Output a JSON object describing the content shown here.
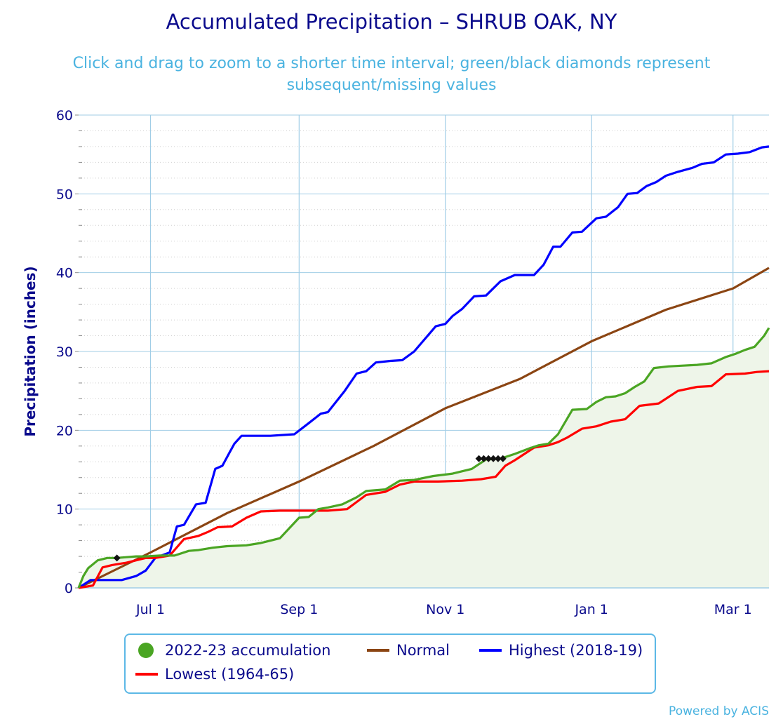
{
  "title": "Accumulated Precipitation – SHRUB OAK, NY",
  "subtitle_line1": "Click and drag to zoom to a shorter time interval; green/black diamonds represent",
  "subtitle_line2": "subsequent/missing values",
  "credit": "Powered by ACIS",
  "colors": {
    "current": "#4aa523",
    "current_fill": "#eef5e9",
    "normal": "#8b4513",
    "highest": "#0000ff",
    "lowest": "#ff0000",
    "axis_text": "#0a0a8c",
    "grid": "#a0cde6"
  },
  "legend": [
    {
      "label": "2022-23 accumulation",
      "color": "#4aa523",
      "symbol": "dot"
    },
    {
      "label": "Normal",
      "color": "#8b4513",
      "symbol": "line"
    },
    {
      "label": "Highest (2018-19)",
      "color": "#0000ff",
      "symbol": "line"
    },
    {
      "label": "Lowest (1964-65)",
      "color": "#ff0000",
      "symbol": "line"
    }
  ],
  "chart_data": {
    "type": "line",
    "title": "Accumulated Precipitation – SHRUB OAK, NY",
    "xlabel": "",
    "ylabel": "Precipitation (inches)",
    "x_unit": "day index from Jun 1 2022",
    "xlim": [
      0,
      288
    ],
    "ylim": [
      0,
      60
    ],
    "yticks": [
      0,
      10,
      20,
      30,
      40,
      50,
      60
    ],
    "xticks": [
      {
        "label": "Jul 1",
        "x": 30
      },
      {
        "label": "Sep 1",
        "x": 92
      },
      {
        "label": "Nov 1",
        "x": 153
      },
      {
        "label": "Jan 1",
        "x": 214
      },
      {
        "label": "Mar 1",
        "x": 273
      }
    ],
    "grid": true,
    "series": [
      {
        "name": "Normal",
        "x": [
          0,
          30,
          62,
          92,
          123,
          153,
          184,
          214,
          245,
          273,
          288
        ],
        "y": [
          0,
          4.5,
          9.5,
          13.5,
          18,
          22.8,
          26.5,
          31.3,
          35.3,
          38,
          40.6
        ]
      },
      {
        "name": "Highest (2018-19)",
        "x": [
          0,
          5,
          18,
          24,
          28,
          32,
          38,
          41,
          44,
          49,
          53,
          57,
          60,
          63,
          65,
          68,
          72,
          80,
          90,
          96,
          101,
          104,
          111,
          116,
          120,
          124,
          130,
          135,
          140,
          149,
          153,
          156,
          160,
          165,
          170,
          176,
          182,
          190,
          194,
          198,
          201,
          206,
          210,
          216,
          220,
          225,
          229,
          233,
          237,
          241,
          245,
          250,
          256,
          260,
          265,
          270,
          275,
          280,
          285,
          288
        ],
        "y": [
          0,
          1,
          1,
          1.5,
          2.2,
          3.8,
          4.5,
          7.8,
          8,
          10.6,
          10.8,
          15.1,
          15.5,
          17.2,
          18.3,
          19.3,
          19.3,
          19.3,
          19.5,
          20.9,
          22.1,
          22.3,
          25,
          27.2,
          27.5,
          28.6,
          28.8,
          28.9,
          30,
          33.2,
          33.5,
          34.5,
          35.4,
          37,
          37.1,
          38.9,
          39.7,
          39.7,
          41,
          43.3,
          43.3,
          45.1,
          45.2,
          46.9,
          47.1,
          48.3,
          50,
          50.1,
          51,
          51.5,
          52.3,
          52.8,
          53.3,
          53.8,
          54,
          55,
          55.1,
          55.3,
          55.9,
          56
        ]
      },
      {
        "name": "Lowest (1964-65)",
        "x": [
          0,
          6,
          10,
          14,
          20,
          28,
          32,
          38,
          44,
          50,
          54,
          58,
          64,
          70,
          76,
          84,
          92,
          104,
          112,
          120,
          128,
          134,
          140,
          150,
          160,
          168,
          174,
          178,
          182,
          190,
          196,
          200,
          204,
          210,
          216,
          222,
          228,
          234,
          242,
          250,
          258,
          264,
          270,
          278,
          283,
          288
        ],
        "y": [
          0,
          0.3,
          2.6,
          2.9,
          3.2,
          3.8,
          3.8,
          4.1,
          6.2,
          6.6,
          7.1,
          7.7,
          7.8,
          8.9,
          9.7,
          9.8,
          9.8,
          9.8,
          10,
          11.8,
          12.2,
          13.1,
          13.5,
          13.5,
          13.6,
          13.8,
          14.1,
          15.5,
          16.2,
          17.8,
          18.1,
          18.5,
          19.1,
          20.2,
          20.5,
          21.1,
          21.4,
          23.1,
          23.4,
          25,
          25.5,
          25.6,
          27.1,
          27.2,
          27.4,
          27.5
        ]
      },
      {
        "name": "2022-23 accumulation",
        "x": [
          0,
          2,
          4,
          8,
          12,
          16,
          20,
          24,
          28,
          34,
          40,
          46,
          50,
          56,
          62,
          70,
          76,
          84,
          92,
          96,
          100,
          104,
          110,
          116,
          120,
          128,
          134,
          140,
          148,
          156,
          164,
          170,
          176,
          182,
          188,
          192,
          196,
          200,
          206,
          212,
          216,
          220,
          224,
          228,
          232,
          236,
          240,
          246,
          252,
          258,
          264,
          270,
          274,
          278,
          282,
          286,
          288
        ],
        "y": [
          0,
          1.5,
          2.5,
          3.5,
          3.8,
          3.8,
          3.9,
          4,
          4,
          4.1,
          4.1,
          4.7,
          4.8,
          5.1,
          5.3,
          5.4,
          5.7,
          6.3,
          8.9,
          9,
          10,
          10.2,
          10.6,
          11.5,
          12.3,
          12.5,
          13.6,
          13.7,
          14.2,
          14.5,
          15.1,
          16.3,
          16.4,
          17,
          17.7,
          18.1,
          18.3,
          19.5,
          22.6,
          22.7,
          23.6,
          24.2,
          24.3,
          24.7,
          25.5,
          26.2,
          27.9,
          28.1,
          28.2,
          28.3,
          28.5,
          29.3,
          29.7,
          30.2,
          30.6,
          32,
          33
        ]
      }
    ],
    "missing_markers": [
      {
        "x": 16,
        "y": 3.8
      },
      {
        "x": 167,
        "y": 16.4
      },
      {
        "x": 169,
        "y": 16.4
      },
      {
        "x": 171,
        "y": 16.4
      },
      {
        "x": 173,
        "y": 16.4
      },
      {
        "x": 175,
        "y": 16.4
      },
      {
        "x": 177,
        "y": 16.4
      }
    ]
  }
}
